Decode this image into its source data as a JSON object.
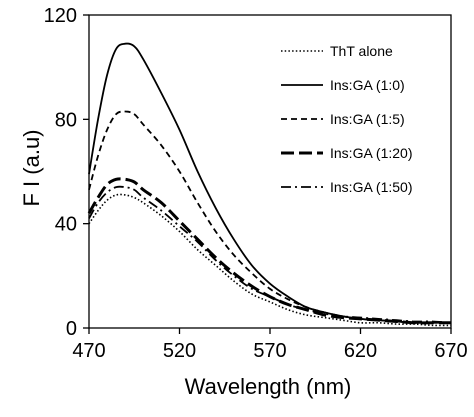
{
  "chart_data": {
    "type": "line",
    "title": "",
    "xlabel": "Wavelength (nm)",
    "ylabel": "F I (a.u)",
    "xlim": [
      470,
      670
    ],
    "ylim": [
      0,
      120
    ],
    "xticks": [
      470,
      520,
      570,
      620,
      670
    ],
    "yticks": [
      0,
      40,
      80,
      120
    ],
    "grid": false,
    "legend_position": "top-right",
    "series": [
      {
        "name": "ThT alone",
        "line_style": "dotted",
        "color": "#000000",
        "x": [
          470,
          475,
          480,
          485,
          490,
          495,
          500,
          510,
          520,
          530,
          540,
          550,
          560,
          570,
          580,
          590,
          600,
          610,
          620,
          630,
          640,
          650,
          660,
          670
        ],
        "y": [
          40,
          45,
          49,
          51,
          51,
          50,
          48,
          43,
          37,
          30,
          24,
          18,
          13,
          10,
          7,
          5,
          4,
          3,
          2,
          2,
          1.5,
          1.5,
          1,
          1
        ]
      },
      {
        "name": "Ins:GA (1:0)",
        "line_style": "solid",
        "color": "#000000",
        "x": [
          470,
          475,
          480,
          485,
          490,
          495,
          500,
          510,
          520,
          530,
          540,
          550,
          560,
          570,
          580,
          590,
          600,
          610,
          620,
          630,
          640,
          650,
          660,
          670
        ],
        "y": [
          59,
          80,
          97,
          107,
          109,
          108,
          103,
          90,
          76,
          60,
          46,
          34,
          24,
          17,
          12,
          8,
          6,
          4.5,
          3.5,
          3,
          2.5,
          2,
          2,
          2
        ]
      },
      {
        "name": "Ins:GA (1:5)",
        "line_style": "dashed",
        "color": "#000000",
        "x": [
          470,
          475,
          480,
          485,
          490,
          495,
          500,
          510,
          520,
          530,
          540,
          550,
          560,
          570,
          580,
          590,
          600,
          610,
          620,
          630,
          640,
          650,
          660,
          670
        ],
        "y": [
          53,
          66,
          76,
          82,
          83,
          82,
          78,
          70,
          60,
          48,
          37,
          28,
          21,
          15,
          11,
          8,
          6,
          4.5,
          3.5,
          3,
          2.5,
          2,
          2,
          2
        ]
      },
      {
        "name": "Ins:GA (1:20)",
        "line_style": "long-dash",
        "color": "#000000",
        "x": [
          470,
          475,
          480,
          485,
          490,
          495,
          500,
          510,
          520,
          530,
          540,
          550,
          560,
          570,
          580,
          590,
          600,
          610,
          620,
          630,
          640,
          650,
          660,
          670
        ],
        "y": [
          44,
          50,
          55,
          57,
          57,
          56,
          53,
          48,
          41,
          34,
          27,
          21,
          16,
          12,
          9,
          7,
          5,
          4,
          3.5,
          3,
          2.5,
          2,
          2,
          2
        ]
      },
      {
        "name": "Ins:GA (1:50)",
        "line_style": "dash-dot",
        "color": "#000000",
        "x": [
          470,
          475,
          480,
          485,
          490,
          495,
          500,
          510,
          520,
          530,
          540,
          550,
          560,
          570,
          580,
          590,
          600,
          610,
          620,
          630,
          640,
          650,
          660,
          670
        ],
        "y": [
          42,
          48,
          52,
          54,
          54,
          53,
          50,
          45,
          39,
          33,
          26,
          20,
          15,
          12,
          9,
          7,
          5.5,
          4.5,
          4,
          3.5,
          3,
          2.5,
          2.5,
          2
        ]
      }
    ]
  }
}
